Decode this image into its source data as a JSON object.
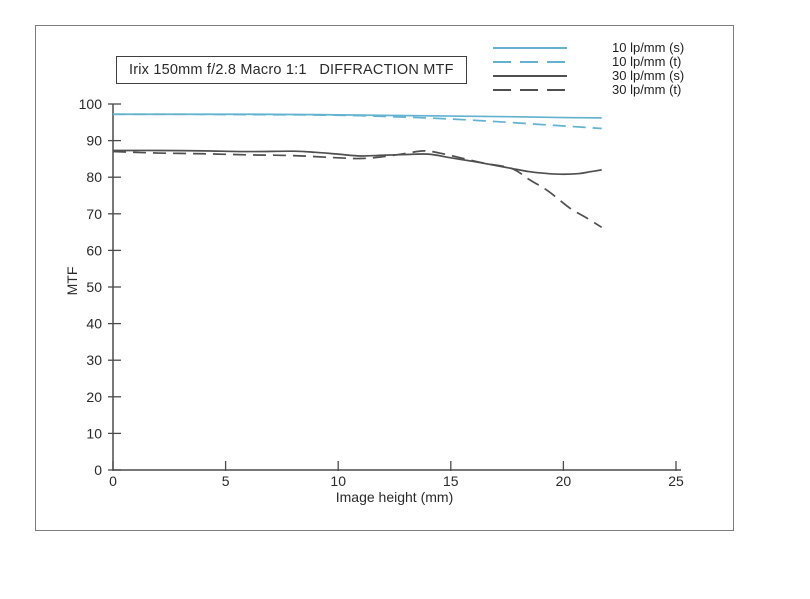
{
  "title": "Irix 150mm f/2.8 Macro 1:1   DIFFRACTION MTF",
  "colors": {
    "background": "#ffffff",
    "frame_border": "#7d7d7d",
    "title_border": "#3f3f3f",
    "axis": "#4b4b4b",
    "text": "#2a2a2a",
    "blue_series": "#62b2d0",
    "dark_series": "#4f4f4f"
  },
  "chart_data": {
    "type": "line",
    "title": "Irix 150mm f/2.8 Macro 1:1   DIFFRACTION MTF",
    "xlabel": "Image height (mm)",
    "ylabel": "MTF",
    "xlim": [
      0,
      25
    ],
    "ylim": [
      0,
      100
    ],
    "xticks": [
      0,
      5,
      10,
      15,
      20,
      25
    ],
    "yticks": [
      0,
      10,
      20,
      30,
      40,
      50,
      60,
      70,
      80,
      90,
      100
    ],
    "grid": false,
    "legend_position": "top-right",
    "series": [
      {
        "name": "10 lp/mm (s)",
        "color": "#62b2d0",
        "dash": false,
        "x": [
          0,
          3,
          6,
          9,
          12,
          15,
          18,
          20,
          21.7
        ],
        "y": [
          97.2,
          97.2,
          97.2,
          97.1,
          96.9,
          96.7,
          96.5,
          96.3,
          96.2
        ]
      },
      {
        "name": "10 lp/mm (t)",
        "color": "#62b2d0",
        "dash": true,
        "x": [
          0,
          3,
          6,
          9,
          11,
          13,
          15,
          17,
          19,
          20.5,
          21.7
        ],
        "y": [
          97.2,
          97.2,
          97.1,
          97.0,
          96.8,
          96.4,
          95.9,
          95.2,
          94.4,
          93.8,
          93.3
        ]
      },
      {
        "name": "30 lp/mm (s)",
        "color": "#4f4f4f",
        "dash": false,
        "x": [
          0,
          2,
          4,
          6,
          8,
          9,
          10,
          11,
          12,
          13,
          14,
          15,
          16,
          17,
          17.7,
          18.5,
          19.3,
          20,
          20.7,
          21.2,
          21.7
        ],
        "y": [
          87.3,
          87.3,
          87.2,
          87.0,
          87.1,
          86.8,
          86.3,
          85.8,
          86.0,
          86.2,
          86.3,
          85.3,
          84.3,
          83.2,
          82.4,
          81.5,
          81.0,
          80.8,
          81.0,
          81.5,
          82.0
        ]
      },
      {
        "name": "30 lp/mm (t)",
        "color": "#4f4f4f",
        "dash": true,
        "x": [
          0,
          2,
          4,
          6,
          8,
          10,
          11,
          12,
          13,
          13.8,
          14.5,
          15.5,
          16.5,
          17.7,
          18.5,
          19.3,
          20.3,
          21,
          21.7
        ],
        "y": [
          87.0,
          86.6,
          86.4,
          86.1,
          85.9,
          85.3,
          85.1,
          85.6,
          86.5,
          87.2,
          86.6,
          85.2,
          83.8,
          82.4,
          79.3,
          76.3,
          71.5,
          69.0,
          66.3
        ]
      }
    ]
  }
}
